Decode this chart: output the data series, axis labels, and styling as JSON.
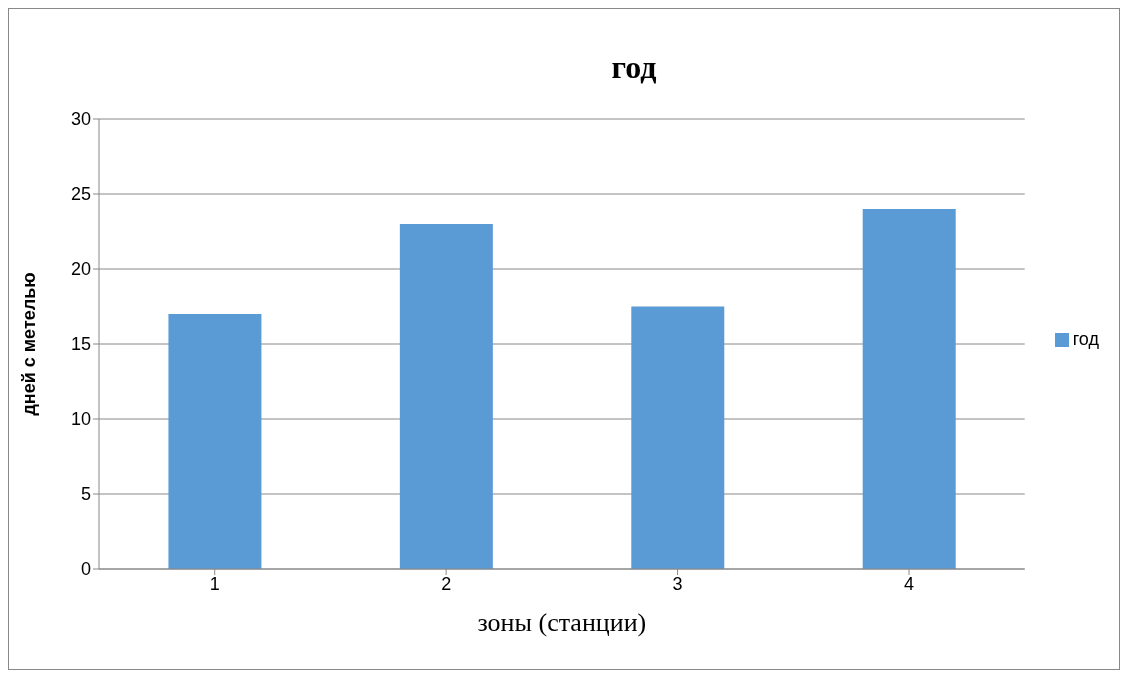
{
  "chart_data": {
    "type": "bar",
    "title": "год",
    "xlabel": "зоны (станции)",
    "ylabel": "дней с метелью",
    "categories": [
      "1",
      "2",
      "3",
      "4"
    ],
    "series": [
      {
        "name": "год",
        "color": "#5b9bd5",
        "values": [
          17,
          23,
          17.5,
          24
        ]
      }
    ],
    "ylim": [
      0,
      30
    ],
    "yticks": [
      0,
      5,
      10,
      15,
      20,
      25,
      30
    ],
    "grid": "y",
    "legend": "right"
  }
}
